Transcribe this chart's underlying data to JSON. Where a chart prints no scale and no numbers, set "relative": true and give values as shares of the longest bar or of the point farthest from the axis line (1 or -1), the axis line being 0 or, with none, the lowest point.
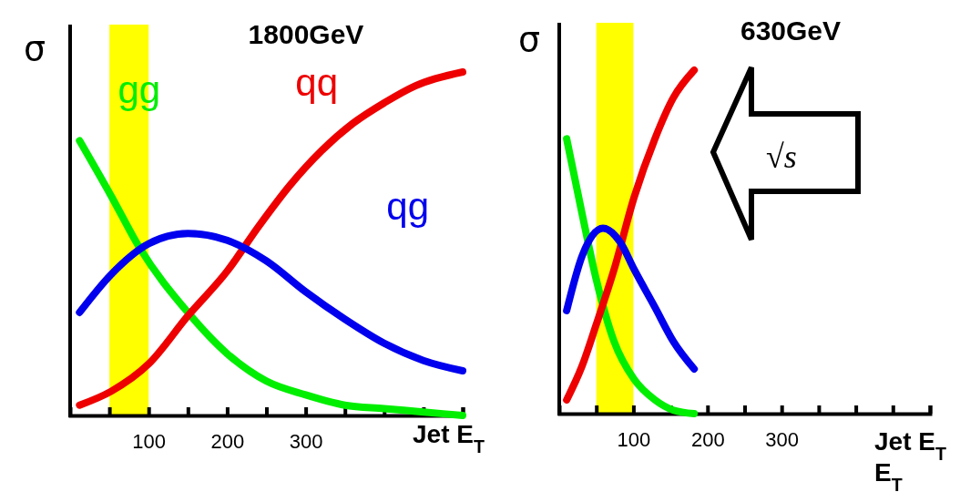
{
  "chart_data": [
    {
      "type": "line",
      "title": "1800GeV",
      "xlabel": "Jet E$_{T}$",
      "ylabel": "σ",
      "relative": true,
      "x": [
        12,
        52,
        100,
        150,
        200,
        250,
        300,
        350,
        400,
        450,
        500
      ],
      "xlim": [
        0,
        500
      ],
      "xticks": [
        {
          "value": 50,
          "label": null
        },
        100,
        {
          "value": 150,
          "label": null
        },
        200,
        {
          "value": 250,
          "label": null
        },
        300,
        {
          "value": 350,
          "label": null
        },
        {
          "value": 400,
          "label": null
        },
        {
          "value": 450,
          "label": null
        },
        {
          "value": 500,
          "label": null
        }
      ],
      "series": [
        {
          "name": "gg",
          "color": "#00ee00",
          "x": [
            12,
            52,
            88,
            150,
            200,
            250,
            300,
            350,
            400,
            450,
            500
          ],
          "values": [
            0.8,
            0.64,
            0.49,
            0.3,
            0.18,
            0.1,
            0.06,
            0.03,
            0.02,
            0.01,
            0.0
          ]
        },
        {
          "name": "qq",
          "color": "#ee0000",
          "x": [
            12,
            52,
            100,
            150,
            200,
            240,
            280,
            320,
            360,
            400,
            440,
            500
          ],
          "values": [
            0.03,
            0.07,
            0.15,
            0.29,
            0.42,
            0.55,
            0.67,
            0.77,
            0.85,
            0.91,
            0.96,
            1.0
          ]
        },
        {
          "name": "qg",
          "color": "#0000ee",
          "values": [
            0.3,
            0.41,
            0.5,
            0.53,
            0.51,
            0.45,
            0.36,
            0.28,
            0.21,
            0.16,
            0.13
          ]
        }
      ],
      "bands": [
        {
          "axis": "x",
          "from": 50,
          "to": 100,
          "color": "#ffff00"
        }
      ]
    },
    {
      "type": "line",
      "title": "630GeV",
      "xlabel": "Jet E$_{T}$",
      "ylabel": "σ",
      "relative": true,
      "xlim": [
        0,
        500
      ],
      "xticks": [
        {
          "value": 50,
          "label": null
        },
        100,
        {
          "value": 150,
          "label": null
        },
        200,
        {
          "value": 250,
          "label": null
        },
        300,
        {
          "value": 350,
          "label": null
        },
        {
          "value": 400,
          "label": null
        },
        {
          "value": 450,
          "label": null
        },
        {
          "value": 500,
          "label": null
        }
      ],
      "series": [
        {
          "color": "#00ee00",
          "x": [
            10,
            31,
            50,
            74,
            101,
            129,
            154,
            182
          ],
          "values": [
            0.8,
            0.58,
            0.39,
            0.21,
            0.1,
            0.04,
            0.01,
            0.0
          ]
        },
        {
          "color": "#ee0000",
          "x": [
            10,
            31,
            50,
            74,
            101,
            129,
            154,
            182
          ],
          "values": [
            0.04,
            0.14,
            0.26,
            0.42,
            0.63,
            0.8,
            0.92,
            1.0
          ]
        },
        {
          "color": "#0000ee",
          "x": [
            10,
            31,
            59,
            82,
            101,
            129,
            154,
            182
          ],
          "values": [
            0.3,
            0.46,
            0.54,
            0.5,
            0.42,
            0.31,
            0.21,
            0.13
          ]
        }
      ],
      "bands": [
        {
          "axis": "x",
          "from": 50,
          "to": 100,
          "color": "#ffff00"
        }
      ],
      "annotations": [
        "√s",
        "E$_{T}$"
      ]
    }
  ]
}
